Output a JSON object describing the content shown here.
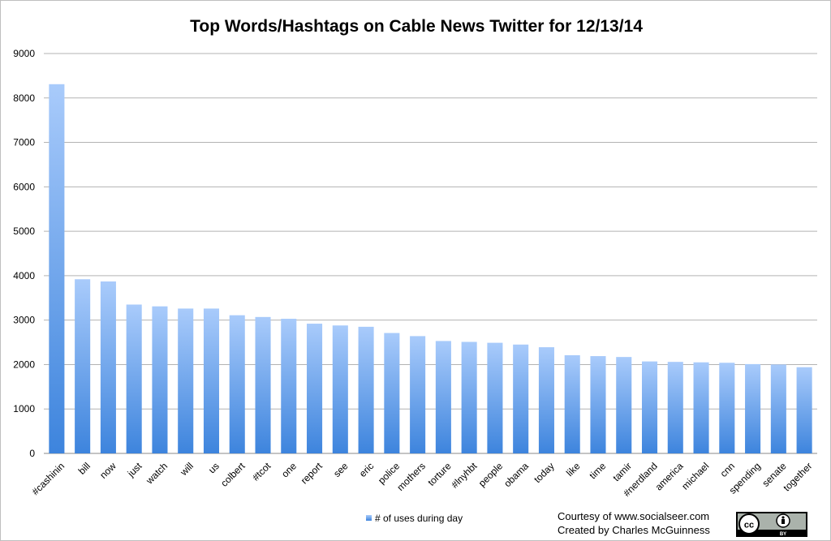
{
  "chart_data": {
    "type": "bar",
    "title": "Top Words/Hashtags on Cable News Twitter for 12/13/14",
    "xlabel": "",
    "ylabel": "",
    "ylim": [
      0,
      9000
    ],
    "yticks": [
      0,
      1000,
      2000,
      3000,
      4000,
      5000,
      6000,
      7000,
      8000,
      9000
    ],
    "grid": true,
    "legend_position": "bottom",
    "categories": [
      "#cashinin",
      "bill",
      "now",
      "just",
      "watch",
      "will",
      "us",
      "colbert",
      "#tcot",
      "one",
      "report",
      "see",
      "eric",
      "police",
      "mothers",
      "torture",
      "#lnyhbt",
      "people",
      "obama",
      "today",
      "like",
      "time",
      "tamir",
      "#nerdland",
      "america",
      "michael",
      "cnn",
      "spending",
      "senate",
      "together"
    ],
    "series": [
      {
        "name": "# of uses during day",
        "color": "#4a8fe0",
        "values": [
          8310,
          3920,
          3870,
          3350,
          3310,
          3260,
          3260,
          3110,
          3070,
          3030,
          2920,
          2880,
          2850,
          2710,
          2640,
          2530,
          2510,
          2490,
          2450,
          2390,
          2210,
          2190,
          2170,
          2070,
          2060,
          2050,
          2040,
          2010,
          2000,
          1940
        ]
      }
    ]
  },
  "credits": {
    "line1": "Courtesy of www.socialseer.com",
    "line2": "Created by Charles McGuinness"
  },
  "license_badge": {
    "cc_text": "cc",
    "by_text": "BY"
  }
}
